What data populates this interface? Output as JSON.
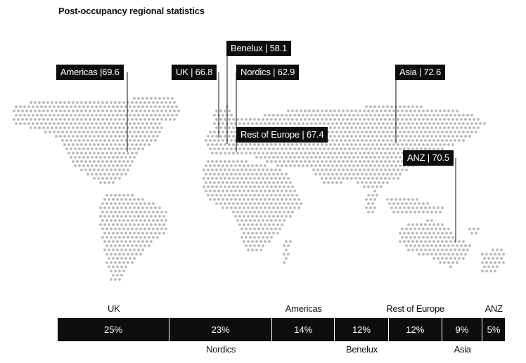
{
  "title": "Post-occupancy regional statistics",
  "chart_data": {
    "type": "bar",
    "title": "Post-occupancy regional statistics",
    "regional_scores": [
      {
        "label": "Americas |69.6",
        "region": "Americas",
        "value": 69.6
      },
      {
        "label": "UK | 66.8",
        "region": "UK",
        "value": 66.8
      },
      {
        "label": "Benelux | 58.1",
        "region": "Benelux",
        "value": 58.1
      },
      {
        "label": "Nordics | 62.9",
        "region": "Nordics",
        "value": 62.9
      },
      {
        "label": "Rest of Europe | 67.4",
        "region": "Rest of Europe",
        "value": 67.4
      },
      {
        "label": "Asia | 72.6",
        "region": "Asia",
        "value": 72.6
      },
      {
        "label": "ANZ | 70.5",
        "region": "ANZ",
        "value": 70.5
      }
    ],
    "stacked_share": {
      "categories": [
        "UK",
        "Nordics",
        "Americas",
        "Benelux",
        "Rest of Europe",
        "Asia",
        "ANZ"
      ],
      "values": [
        25,
        23,
        14,
        12,
        12,
        9,
        5
      ],
      "value_labels": [
        "25%",
        "23%",
        "14%",
        "12%",
        "12%",
        "9%",
        "5%"
      ]
    }
  }
}
